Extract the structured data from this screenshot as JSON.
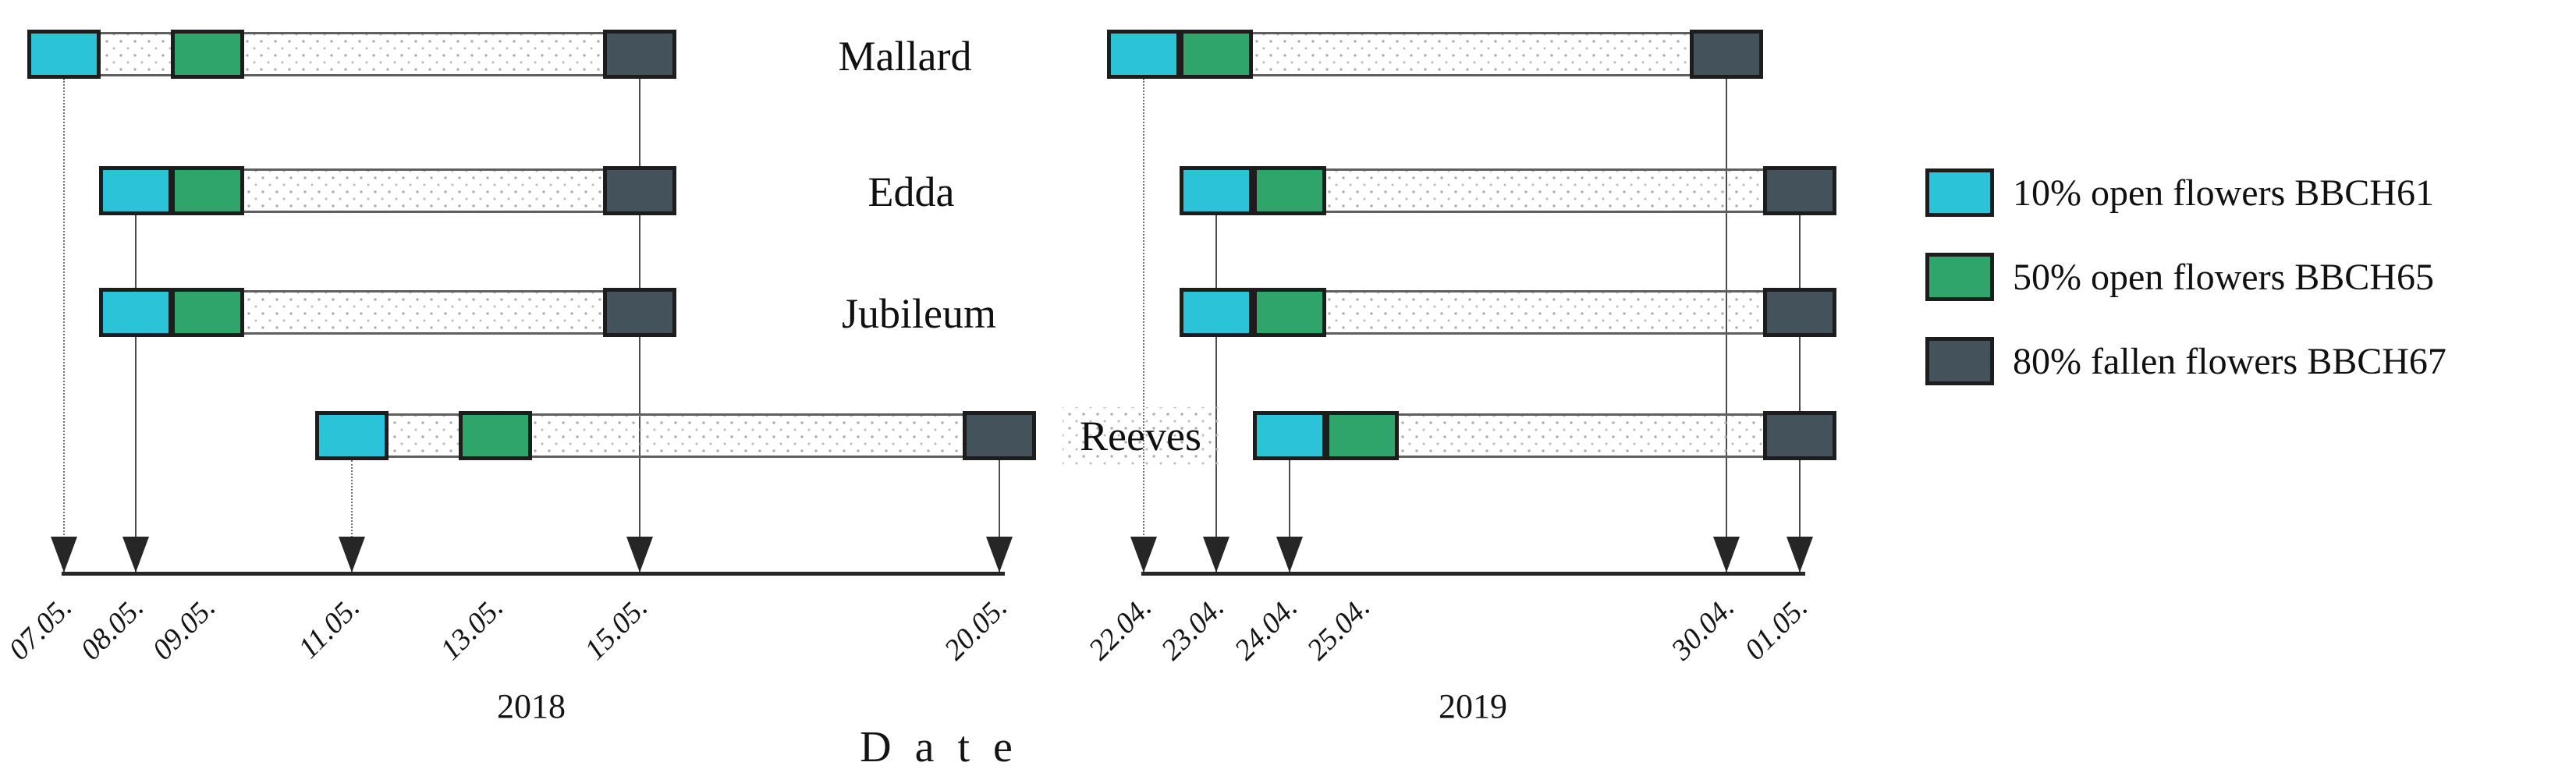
{
  "chart_data": {
    "type": "timeline",
    "title": "",
    "xlabel": "Date",
    "ylabel": "",
    "varieties": [
      "Mallard",
      "Edda",
      "Jubileum",
      "Reeves"
    ],
    "legend_position": "right",
    "legend": [
      {
        "stage": "BBCH61",
        "label": "10% open flowers BBCH61",
        "color": "#2bc3d7"
      },
      {
        "stage": "BBCH65",
        "label": "50% open flowers BBCH65",
        "color": "#2fa56b"
      },
      {
        "stage": "BBCH67",
        "label": "80% fallen flowers BBCH67",
        "color": "#44525b"
      }
    ],
    "panels": [
      {
        "year": "2018",
        "ticks": [
          {
            "date": "07.05.",
            "arrow": true,
            "line": {
              "from_row": 0,
              "style": "dotted"
            }
          },
          {
            "date": "08.05.",
            "arrow": true,
            "line": {
              "from_row": 1,
              "style": "solid"
            }
          },
          {
            "date": "09.05.",
            "arrow": false
          },
          {
            "date": "11.05.",
            "arrow": true,
            "line": {
              "from_row": 3,
              "style": "dotted"
            }
          },
          {
            "date": "13.05.",
            "arrow": false
          },
          {
            "date": "15.05.",
            "arrow": true,
            "line": {
              "from_row": 0,
              "style": "solid"
            }
          },
          {
            "date": "20.05.",
            "arrow": true,
            "line": {
              "from_row": 3,
              "style": "solid"
            }
          }
        ],
        "rows": [
          {
            "variety": "Mallard",
            "bbch61": "07.05.",
            "bbch65": "09.05.",
            "bbch67": "15.05."
          },
          {
            "variety": "Edda",
            "bbch61": "08.05.",
            "bbch65": "09.05.",
            "bbch67": "15.05."
          },
          {
            "variety": "Jubileum",
            "bbch61": "08.05.",
            "bbch65": "09.05.",
            "bbch67": "15.05."
          },
          {
            "variety": "Reeves",
            "bbch61": "11.05.",
            "bbch65": "13.05.",
            "bbch67": "20.05."
          }
        ]
      },
      {
        "year": "2019",
        "ticks": [
          {
            "date": "22.04.",
            "arrow": true,
            "line": {
              "from_row": 0,
              "style": "dotted"
            }
          },
          {
            "date": "23.04.",
            "arrow": true,
            "line": {
              "from_row": 1,
              "style": "solid"
            }
          },
          {
            "date": "24.04.",
            "arrow": true,
            "line": {
              "from_row": 3,
              "style": "solid"
            }
          },
          {
            "date": "25.04.",
            "arrow": false
          },
          {
            "date": "30.04.",
            "arrow": true,
            "line": {
              "from_row": 0,
              "style": "solid"
            }
          },
          {
            "date": "01.05.",
            "arrow": true,
            "line": {
              "from_row": 1,
              "style": "solid"
            }
          }
        ],
        "rows": [
          {
            "variety": "Mallard",
            "bbch61": "22.04.",
            "bbch65": "23.04.",
            "bbch67": "30.04."
          },
          {
            "variety": "Edda",
            "bbch61": "23.04.",
            "bbch65": "24.04.",
            "bbch67": "01.05."
          },
          {
            "variety": "Jubileum",
            "bbch61": "23.04.",
            "bbch65": "24.04.",
            "bbch67": "01.05."
          },
          {
            "variety": "Reeves",
            "bbch61": "24.04.",
            "bbch65": "25.04.",
            "bbch67": "01.05."
          }
        ]
      }
    ]
  }
}
